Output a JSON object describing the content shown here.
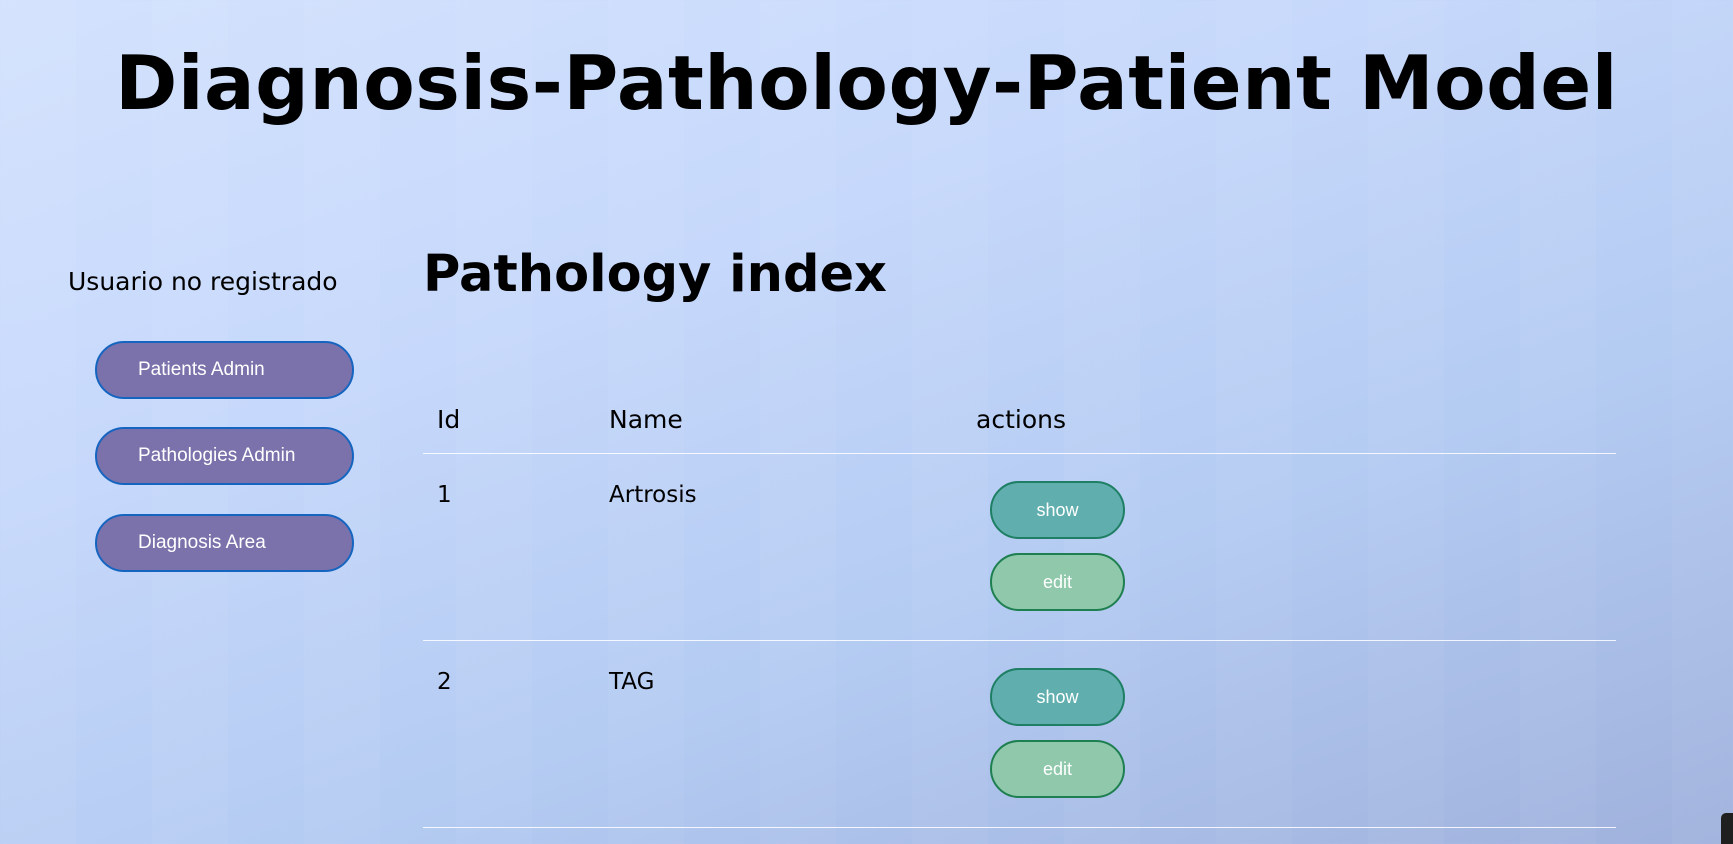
{
  "header": {
    "title": "Diagnosis-Pathology-Patient Model"
  },
  "sidebar": {
    "user_status": "Usuario no registrado",
    "nav": [
      {
        "label": "Patients Admin"
      },
      {
        "label": "Pathologies Admin"
      },
      {
        "label": "Diagnosis Area"
      }
    ]
  },
  "main": {
    "title": "Pathology index",
    "table": {
      "columns": [
        "Id",
        "Name",
        "actions"
      ],
      "rows": [
        {
          "id": "1",
          "name": "Artrosis",
          "show_label": "show",
          "edit_label": "edit"
        },
        {
          "id": "2",
          "name": "TAG",
          "show_label": "show",
          "edit_label": "edit"
        }
      ]
    }
  },
  "colors": {
    "nav_button_bg": "#7b72ab",
    "nav_button_border": "#1565c0",
    "show_button_bg": "#61aeae",
    "edit_button_bg": "#8fc8ab"
  }
}
